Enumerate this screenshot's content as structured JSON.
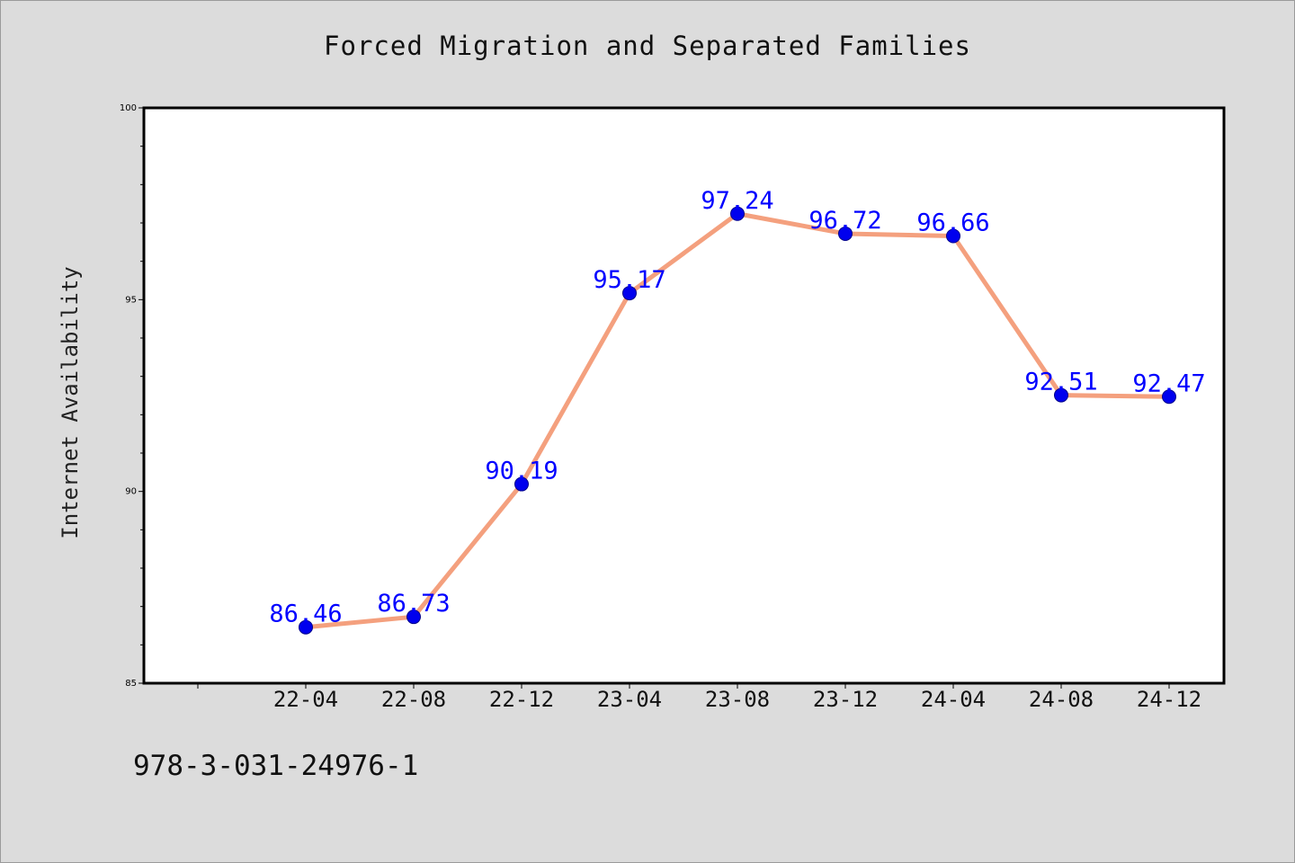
{
  "chart_data": {
    "type": "line",
    "title": "Forced Migration and Separated Families",
    "xlabel": "",
    "ylabel": "Internet Availability",
    "x": [
      "22-04",
      "22-08",
      "22-12",
      "23-04",
      "23-08",
      "23-12",
      "24-04",
      "24-08",
      "24-12"
    ],
    "series": [
      {
        "values": [
          86.46,
          86.73,
          90.19,
          95.17,
          97.24,
          96.72,
          96.66,
          92.51,
          92.47
        ],
        "data_labels": [
          "86.46",
          "86.73",
          "90.19",
          "95.17",
          "97.24",
          "96.72",
          "96.66",
          "92.51",
          "92.47"
        ],
        "line_color": "#f4a07e",
        "marker_color": "#0000ee",
        "label_color": "#0000ff"
      }
    ],
    "ylim": [
      85,
      100
    ],
    "y_ticks": [
      85,
      90,
      95,
      100
    ],
    "y_tick_labels": [
      "85",
      "90",
      "95",
      "100"
    ],
    "grid": false,
    "legend": "none"
  },
  "footer": {
    "code": "978-3-031-24976-1"
  },
  "colors": {
    "background": "#dcdcdc",
    "plot_background": "#ffffff",
    "axis": "#000000"
  }
}
